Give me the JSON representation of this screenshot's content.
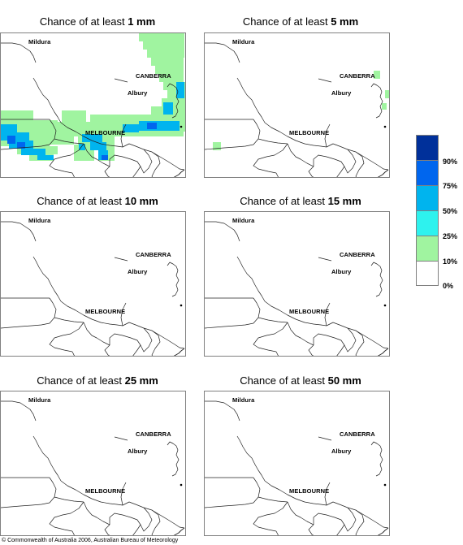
{
  "panels": [
    {
      "prefix": "Chance of at least ",
      "amount": "1 mm"
    },
    {
      "prefix": "Chance of at least ",
      "amount": "5 mm"
    },
    {
      "prefix": "Chance of at least ",
      "amount": "10 mm"
    },
    {
      "prefix": "Chance of at least ",
      "amount": "15 mm"
    },
    {
      "prefix": "Chance of at least ",
      "amount": "25 mm"
    },
    {
      "prefix": "Chance of at least ",
      "amount": "50 mm"
    }
  ],
  "cities": {
    "mildura": "Mildura",
    "canberra": "CANBERRA",
    "albury": "Albury",
    "melbourne": "MELBOURNE"
  },
  "legend": {
    "labels": [
      "90%",
      "75%",
      "50%",
      "25%",
      "10%",
      "0%"
    ],
    "colors": [
      "#00309a",
      "#0066ee",
      "#00b4ee",
      "#2ef2ee",
      "#a0f4a0",
      "#ffffff"
    ]
  },
  "copyright": "© Commonwealth of Australia 2006, Australian Bureau of Meteorology"
}
